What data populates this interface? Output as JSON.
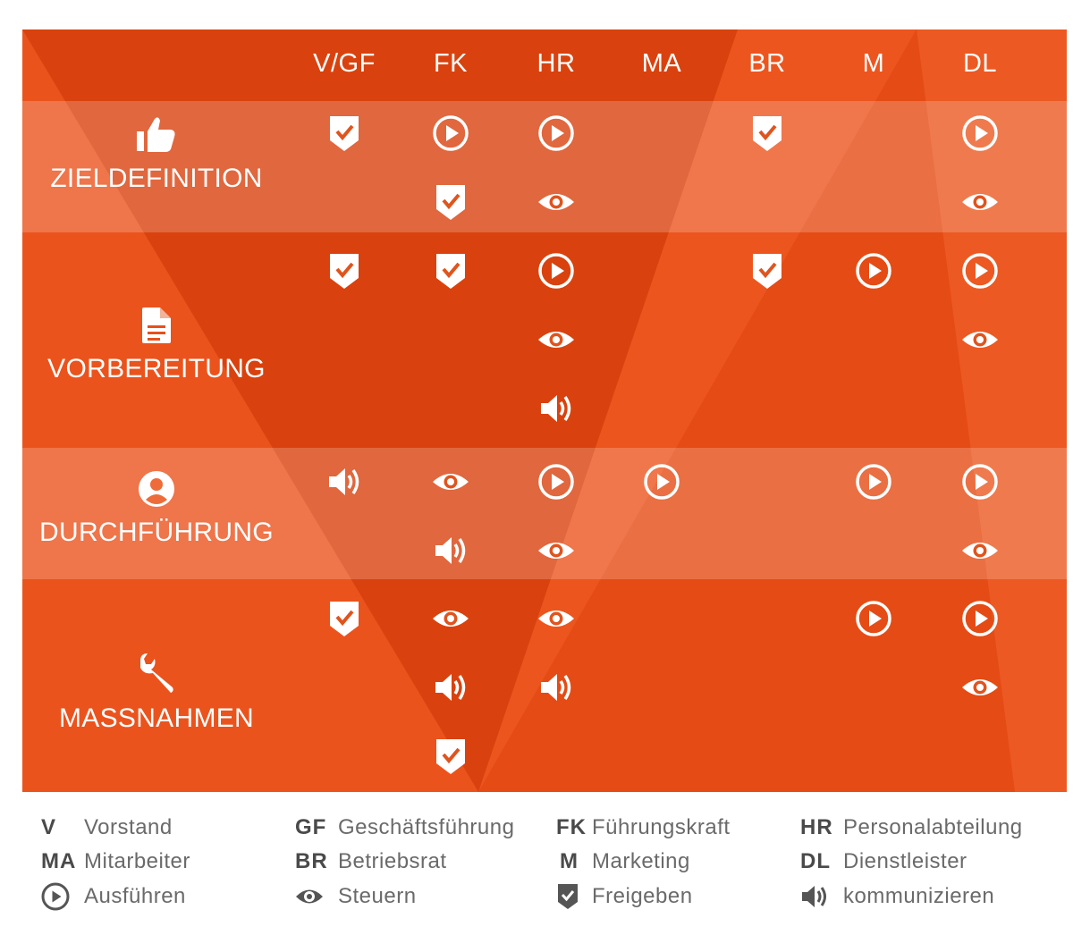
{
  "colors": {
    "base": "#e8501a",
    "band": "rgba(255,255,255,0.20)",
    "icon_white": "#ffffff",
    "legend_icon": "#555555"
  },
  "columns": [
    "V/GF",
    "FK",
    "HR",
    "MA",
    "BR",
    "M",
    "DL"
  ],
  "phases": [
    {
      "id": "zieldefinition",
      "label": "ZIELDEFINITION",
      "icon": "thumbs-up-icon",
      "cells": [
        [
          "approve"
        ],
        [
          "execute",
          "approve"
        ],
        [
          "execute",
          "control"
        ],
        [],
        [
          "approve"
        ],
        [],
        [
          "execute",
          "control"
        ]
      ]
    },
    {
      "id": "vorbereitung",
      "label": "VORBEREITUNG",
      "icon": "document-icon",
      "cells": [
        [
          "approve"
        ],
        [
          "approve"
        ],
        [
          "execute",
          "control",
          "communicate"
        ],
        [],
        [
          "approve"
        ],
        [
          "execute"
        ],
        [
          "execute",
          "control"
        ]
      ]
    },
    {
      "id": "durchfuehrung",
      "label": "DURCHFÜHRUNG",
      "icon": "user-icon",
      "cells": [
        [
          "communicate"
        ],
        [
          "control",
          "communicate"
        ],
        [
          "execute",
          "control"
        ],
        [
          "execute"
        ],
        [],
        [
          "execute"
        ],
        [
          "execute",
          "control"
        ]
      ]
    },
    {
      "id": "massnahmen",
      "label": "MASSNAHMEN",
      "icon": "wrench-icon",
      "cells": [
        [
          "approve"
        ],
        [
          "control",
          "communicate",
          "approve"
        ],
        [
          "control",
          "communicate"
        ],
        [],
        [],
        [
          "execute"
        ],
        [
          "execute",
          "control"
        ]
      ]
    }
  ],
  "legend": {
    "abbreviations": [
      {
        "abbr": "V",
        "text": "Vorstand"
      },
      {
        "abbr": "GF",
        "text": "Geschäftsführung"
      },
      {
        "abbr": "FK",
        "text": "Führungskraft"
      },
      {
        "abbr": "HR",
        "text": "Personalabteilung"
      },
      {
        "abbr": "MA",
        "text": "Mitarbeiter"
      },
      {
        "abbr": "BR",
        "text": "Betriebsrat"
      },
      {
        "abbr": "M",
        "text": "Marketing"
      },
      {
        "abbr": "DL",
        "text": "Dienstleister"
      }
    ],
    "symbols": [
      {
        "icon": "execute",
        "text": "Ausführen"
      },
      {
        "icon": "control",
        "text": "Steuern"
      },
      {
        "icon": "approve",
        "text": "Freigeben"
      },
      {
        "icon": "communicate",
        "text": "kommunizieren"
      }
    ]
  }
}
